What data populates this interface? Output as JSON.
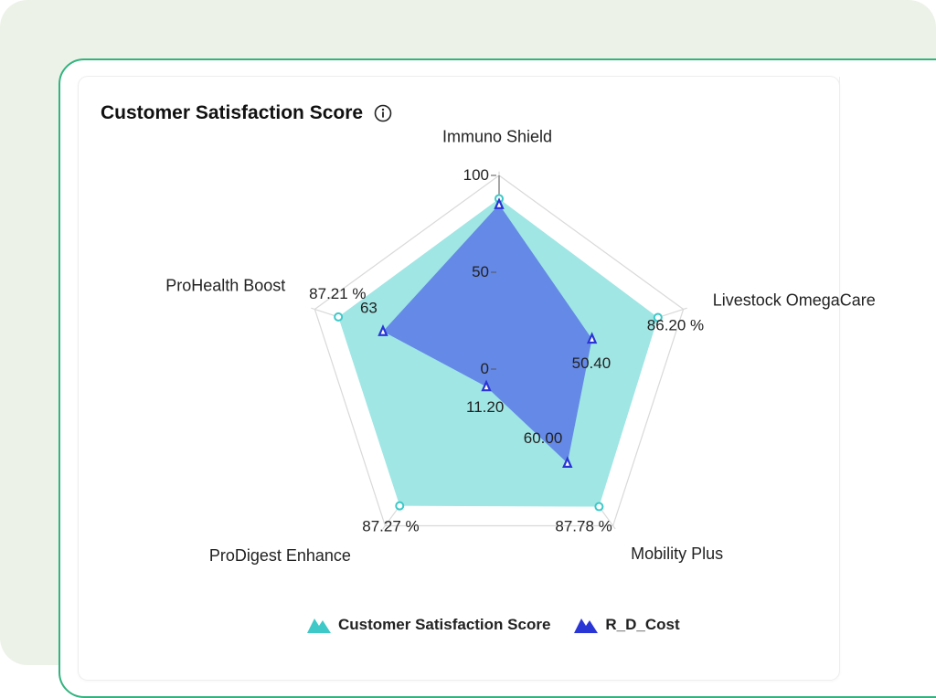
{
  "card": {
    "title": "Customer Satisfaction Score",
    "info_icon": "info-circle-icon"
  },
  "chart_data": {
    "type": "radar",
    "categories": [
      "Immuno Shield",
      "Livestock OmegaCare",
      "Mobility Plus",
      "ProDigest Enhance",
      "ProHealth Boost"
    ],
    "radial_ticks": [
      "0",
      "50",
      "100"
    ],
    "rlim": [
      0,
      100
    ],
    "series": [
      {
        "name": "Customer Satisfaction Score",
        "values": [
          88.0,
          86.2,
          87.78,
          87.27,
          87.21
        ],
        "labels": [
          "",
          "86.20 %",
          "87.78 %",
          "87.27 %",
          "87.21 %"
        ],
        "color": "#3ec8c8",
        "fill": "#9fe6e4",
        "marker": "circle"
      },
      {
        "name": "R_D_Cost",
        "values": [
          85.0,
          50.4,
          60.0,
          11.2,
          63
        ],
        "labels": [
          "",
          "50.40",
          "60.00",
          "11.20",
          "63"
        ],
        "color": "#2a35d6",
        "fill": "#5a78e6",
        "marker": "triangle"
      }
    ],
    "grid": true,
    "legend_position": "bottom"
  },
  "legend": {
    "items": [
      {
        "label": "Customer Satisfaction Score",
        "color": "#3ec8c8"
      },
      {
        "label": "R_D_Cost",
        "color": "#2a35d6"
      }
    ]
  }
}
